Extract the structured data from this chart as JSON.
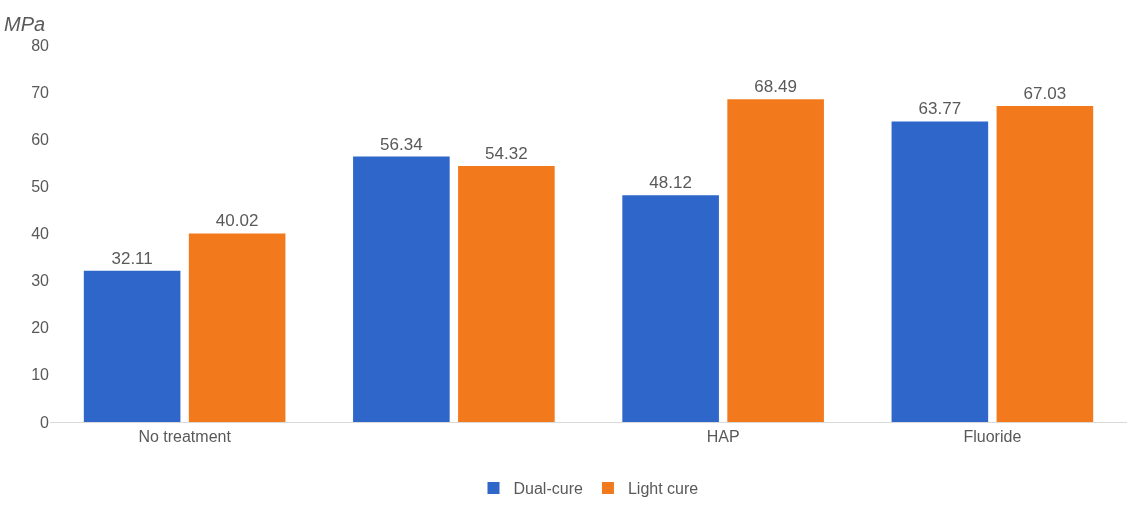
{
  "chart_data": {
    "type": "bar",
    "ylabel": "MPa",
    "categories": [
      "No treatment",
      null,
      "HAP",
      "Fluoride"
    ],
    "series": [
      {
        "name": "Dual-cure",
        "color": "#2f66c9",
        "values": [
          32.11,
          56.34,
          48.12,
          63.77
        ]
      },
      {
        "name": "Light cure",
        "color": "#f27a1c",
        "values": [
          40.02,
          54.32,
          68.49,
          67.03
        ]
      }
    ],
    "ylim": [
      0,
      80
    ],
    "yticks": [
      0,
      10,
      20,
      30,
      40,
      50,
      60,
      70,
      80
    ],
    "grid": false,
    "legend": "bottom",
    "data_labels": true
  }
}
